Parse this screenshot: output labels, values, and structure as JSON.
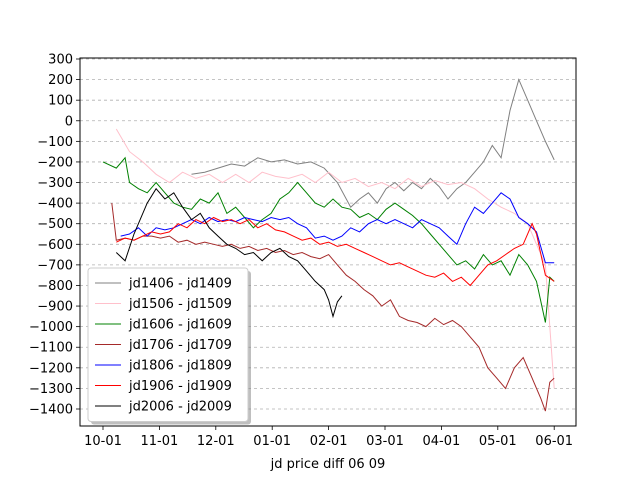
{
  "chart_data": {
    "type": "line",
    "title": "",
    "xlabel": "jd price diff 06 09",
    "ylabel": "",
    "ylim": [
      -1500,
      300
    ],
    "grid": {
      "y": true,
      "x": false,
      "style": "dashed"
    },
    "legend_position": "lower-left",
    "x_ticks": [
      "10-01",
      "11-01",
      "12-01",
      "01-01",
      "02-01",
      "03-01",
      "04-01",
      "05-01",
      "06-01"
    ],
    "y_ticks": [
      300,
      200,
      100,
      0,
      -100,
      -200,
      -300,
      -400,
      -500,
      -600,
      -700,
      -800,
      -900,
      -1000,
      -1100,
      -1200,
      -1300,
      -1400
    ],
    "series": [
      {
        "name": "jd1406 - jd1409",
        "color": "#808080",
        "points": [
          [
            2.0,
            -260
          ],
          [
            2.3,
            -250
          ],
          [
            2.6,
            -230
          ],
          [
            2.9,
            -210
          ],
          [
            3.2,
            -220
          ],
          [
            3.5,
            -180
          ],
          [
            3.8,
            -200
          ],
          [
            4.1,
            -190
          ],
          [
            4.4,
            -210
          ],
          [
            4.7,
            -200
          ],
          [
            5.0,
            -230
          ],
          [
            5.3,
            -300
          ],
          [
            5.6,
            -420
          ],
          [
            5.8,
            -380
          ],
          [
            6.0,
            -350
          ],
          [
            6.2,
            -400
          ],
          [
            6.4,
            -330
          ],
          [
            6.6,
            -300
          ],
          [
            6.8,
            -340
          ],
          [
            7.0,
            -300
          ],
          [
            7.2,
            -330
          ],
          [
            7.4,
            -280
          ],
          [
            7.6,
            -320
          ],
          [
            7.8,
            -380
          ],
          [
            8.0,
            -330
          ],
          [
            8.2,
            -300
          ],
          [
            8.4,
            -250
          ],
          [
            8.6,
            -200
          ],
          [
            8.8,
            -120
          ],
          [
            9.0,
            -180
          ],
          [
            9.2,
            50
          ],
          [
            9.4,
            200
          ],
          [
            9.6,
            100
          ],
          [
            9.8,
            0
          ],
          [
            10.0,
            -100
          ],
          [
            10.2,
            -190
          ]
        ]
      },
      {
        "name": "jd1506 - jd1509",
        "color": "#ffc0cb",
        "points": [
          [
            0.3,
            -40
          ],
          [
            0.6,
            -150
          ],
          [
            0.9,
            -200
          ],
          [
            1.2,
            -260
          ],
          [
            1.5,
            -300
          ],
          [
            1.8,
            -250
          ],
          [
            2.1,
            -280
          ],
          [
            2.4,
            -260
          ],
          [
            2.7,
            -300
          ],
          [
            3.0,
            -260
          ],
          [
            3.3,
            -300
          ],
          [
            3.6,
            -250
          ],
          [
            3.9,
            -270
          ],
          [
            4.2,
            -280
          ],
          [
            4.5,
            -260
          ],
          [
            4.8,
            -300
          ],
          [
            5.1,
            -250
          ],
          [
            5.4,
            -300
          ],
          [
            5.7,
            -280
          ],
          [
            6.0,
            -320
          ],
          [
            6.3,
            -300
          ],
          [
            6.6,
            -330
          ],
          [
            6.9,
            -280
          ],
          [
            7.2,
            -320
          ],
          [
            7.5,
            -290
          ],
          [
            7.8,
            -310
          ],
          [
            8.1,
            -300
          ],
          [
            8.4,
            -330
          ],
          [
            8.7,
            -380
          ],
          [
            9.0,
            -420
          ],
          [
            9.3,
            -450
          ],
          [
            9.6,
            -500
          ],
          [
            9.8,
            -600
          ],
          [
            10.0,
            -700
          ],
          [
            10.2,
            -1300
          ]
        ]
      },
      {
        "name": "jd1606 - jd1609",
        "color": "#008000",
        "points": [
          [
            0.0,
            -200
          ],
          [
            0.3,
            -230
          ],
          [
            0.5,
            -180
          ],
          [
            0.6,
            -300
          ],
          [
            0.8,
            -330
          ],
          [
            1.0,
            -350
          ],
          [
            1.2,
            -300
          ],
          [
            1.4,
            -350
          ],
          [
            1.6,
            -400
          ],
          [
            1.8,
            -420
          ],
          [
            2.0,
            -430
          ],
          [
            2.2,
            -380
          ],
          [
            2.4,
            -400
          ],
          [
            2.6,
            -350
          ],
          [
            2.8,
            -450
          ],
          [
            3.0,
            -420
          ],
          [
            3.2,
            -470
          ],
          [
            3.4,
            -520
          ],
          [
            3.6,
            -480
          ],
          [
            3.8,
            -450
          ],
          [
            4.0,
            -380
          ],
          [
            4.2,
            -350
          ],
          [
            4.4,
            -300
          ],
          [
            4.6,
            -350
          ],
          [
            4.8,
            -400
          ],
          [
            5.0,
            -420
          ],
          [
            5.2,
            -380
          ],
          [
            5.4,
            -420
          ],
          [
            5.6,
            -430
          ],
          [
            5.8,
            -470
          ],
          [
            6.0,
            -450
          ],
          [
            6.2,
            -480
          ],
          [
            6.4,
            -430
          ],
          [
            6.6,
            -400
          ],
          [
            6.8,
            -430
          ],
          [
            7.0,
            -460
          ],
          [
            7.2,
            -500
          ],
          [
            7.4,
            -550
          ],
          [
            7.6,
            -600
          ],
          [
            7.8,
            -650
          ],
          [
            8.0,
            -700
          ],
          [
            8.2,
            -680
          ],
          [
            8.4,
            -720
          ],
          [
            8.6,
            -650
          ],
          [
            8.8,
            -700
          ],
          [
            9.0,
            -680
          ],
          [
            9.2,
            -750
          ],
          [
            9.4,
            -650
          ],
          [
            9.6,
            -700
          ],
          [
            9.8,
            -780
          ],
          [
            10.0,
            -980
          ],
          [
            10.1,
            -760
          ],
          [
            10.2,
            -780
          ]
        ]
      },
      {
        "name": "jd1706 - jd1709",
        "color": "#a52a2a",
        "points": [
          [
            0.2,
            -400
          ],
          [
            0.3,
            -580
          ],
          [
            0.5,
            -570
          ],
          [
            0.7,
            -580
          ],
          [
            0.9,
            -560
          ],
          [
            1.1,
            -560
          ],
          [
            1.3,
            -570
          ],
          [
            1.5,
            -560
          ],
          [
            1.7,
            -590
          ],
          [
            1.9,
            -580
          ],
          [
            2.1,
            -600
          ],
          [
            2.3,
            -590
          ],
          [
            2.5,
            -600
          ],
          [
            2.7,
            -610
          ],
          [
            2.9,
            -600
          ],
          [
            3.1,
            -620
          ],
          [
            3.3,
            -610
          ],
          [
            3.5,
            -630
          ],
          [
            3.7,
            -620
          ],
          [
            3.9,
            -640
          ],
          [
            4.1,
            -630
          ],
          [
            4.3,
            -650
          ],
          [
            4.5,
            -640
          ],
          [
            4.7,
            -660
          ],
          [
            4.9,
            -670
          ],
          [
            5.1,
            -650
          ],
          [
            5.3,
            -700
          ],
          [
            5.5,
            -750
          ],
          [
            5.7,
            -780
          ],
          [
            5.9,
            -820
          ],
          [
            6.1,
            -850
          ],
          [
            6.3,
            -900
          ],
          [
            6.5,
            -870
          ],
          [
            6.7,
            -950
          ],
          [
            6.9,
            -970
          ],
          [
            7.1,
            -980
          ],
          [
            7.3,
            -1000
          ],
          [
            7.5,
            -960
          ],
          [
            7.7,
            -990
          ],
          [
            7.9,
            -970
          ],
          [
            8.1,
            -1000
          ],
          [
            8.3,
            -1050
          ],
          [
            8.5,
            -1100
          ],
          [
            8.7,
            -1200
          ],
          [
            8.9,
            -1250
          ],
          [
            9.1,
            -1300
          ],
          [
            9.3,
            -1200
          ],
          [
            9.5,
            -1150
          ],
          [
            9.7,
            -1250
          ],
          [
            9.9,
            -1350
          ],
          [
            10.0,
            -1410
          ],
          [
            10.1,
            -1270
          ],
          [
            10.2,
            -1250
          ]
        ]
      },
      {
        "name": "jd1806 - jd1809",
        "color": "#0000ff",
        "points": [
          [
            0.4,
            -560
          ],
          [
            0.6,
            -550
          ],
          [
            0.8,
            -520
          ],
          [
            1.0,
            -560
          ],
          [
            1.2,
            -520
          ],
          [
            1.4,
            -530
          ],
          [
            1.6,
            -520
          ],
          [
            1.8,
            -500
          ],
          [
            2.0,
            -480
          ],
          [
            2.2,
            -500
          ],
          [
            2.4,
            -470
          ],
          [
            2.6,
            -490
          ],
          [
            2.8,
            -480
          ],
          [
            3.0,
            -490
          ],
          [
            3.2,
            -470
          ],
          [
            3.4,
            -480
          ],
          [
            3.6,
            -490
          ],
          [
            3.8,
            -470
          ],
          [
            4.0,
            -480
          ],
          [
            4.2,
            -470
          ],
          [
            4.4,
            -500
          ],
          [
            4.6,
            -520
          ],
          [
            4.8,
            -570
          ],
          [
            5.0,
            -560
          ],
          [
            5.2,
            -580
          ],
          [
            5.4,
            -560
          ],
          [
            5.6,
            -520
          ],
          [
            5.8,
            -540
          ],
          [
            6.0,
            -500
          ],
          [
            6.2,
            -480
          ],
          [
            6.4,
            -500
          ],
          [
            6.6,
            -480
          ],
          [
            6.8,
            -500
          ],
          [
            7.0,
            -520
          ],
          [
            7.2,
            -480
          ],
          [
            7.4,
            -500
          ],
          [
            7.6,
            -520
          ],
          [
            7.8,
            -560
          ],
          [
            8.0,
            -600
          ],
          [
            8.2,
            -500
          ],
          [
            8.4,
            -420
          ],
          [
            8.6,
            -450
          ],
          [
            8.8,
            -400
          ],
          [
            9.0,
            -350
          ],
          [
            9.2,
            -380
          ],
          [
            9.4,
            -470
          ],
          [
            9.6,
            -500
          ],
          [
            9.8,
            -540
          ],
          [
            10.0,
            -690
          ],
          [
            10.2,
            -690
          ]
        ]
      },
      {
        "name": "jd1906 - jd1909",
        "color": "#ff0000",
        "points": [
          [
            0.3,
            -590
          ],
          [
            0.5,
            -570
          ],
          [
            0.7,
            -580
          ],
          [
            0.9,
            -560
          ],
          [
            1.1,
            -540
          ],
          [
            1.3,
            -550
          ],
          [
            1.5,
            -540
          ],
          [
            1.7,
            -500
          ],
          [
            1.9,
            -520
          ],
          [
            2.1,
            -480
          ],
          [
            2.3,
            -500
          ],
          [
            2.5,
            -470
          ],
          [
            2.7,
            -490
          ],
          [
            2.9,
            -480
          ],
          [
            3.1,
            -500
          ],
          [
            3.3,
            -480
          ],
          [
            3.5,
            -520
          ],
          [
            3.7,
            -500
          ],
          [
            3.9,
            -530
          ],
          [
            4.1,
            -540
          ],
          [
            4.3,
            -560
          ],
          [
            4.5,
            -580
          ],
          [
            4.7,
            -570
          ],
          [
            4.9,
            -600
          ],
          [
            5.1,
            -590
          ],
          [
            5.3,
            -610
          ],
          [
            5.5,
            -600
          ],
          [
            5.7,
            -620
          ],
          [
            5.9,
            -640
          ],
          [
            6.1,
            -660
          ],
          [
            6.3,
            -680
          ],
          [
            6.5,
            -700
          ],
          [
            6.7,
            -690
          ],
          [
            6.9,
            -710
          ],
          [
            7.1,
            -730
          ],
          [
            7.3,
            -750
          ],
          [
            7.5,
            -760
          ],
          [
            7.7,
            -740
          ],
          [
            7.9,
            -780
          ],
          [
            8.1,
            -760
          ],
          [
            8.3,
            -800
          ],
          [
            8.5,
            -750
          ],
          [
            8.7,
            -700
          ],
          [
            8.9,
            -680
          ],
          [
            9.1,
            -650
          ],
          [
            9.3,
            -620
          ],
          [
            9.5,
            -600
          ],
          [
            9.7,
            -500
          ],
          [
            9.8,
            -550
          ],
          [
            10.0,
            -750
          ],
          [
            10.2,
            -780
          ]
        ]
      },
      {
        "name": "jd2006 - jd2009",
        "color": "#000000",
        "points": [
          [
            0.3,
            -640
          ],
          [
            0.5,
            -680
          ],
          [
            0.7,
            -550
          ],
          [
            0.8,
            -500
          ],
          [
            1.0,
            -400
          ],
          [
            1.2,
            -330
          ],
          [
            1.4,
            -380
          ],
          [
            1.6,
            -350
          ],
          [
            1.8,
            -420
          ],
          [
            2.0,
            -480
          ],
          [
            2.2,
            -450
          ],
          [
            2.4,
            -520
          ],
          [
            2.6,
            -560
          ],
          [
            2.8,
            -600
          ],
          [
            3.0,
            -620
          ],
          [
            3.2,
            -650
          ],
          [
            3.4,
            -640
          ],
          [
            3.6,
            -680
          ],
          [
            3.8,
            -640
          ],
          [
            4.0,
            -620
          ],
          [
            4.2,
            -660
          ],
          [
            4.4,
            -680
          ],
          [
            4.6,
            -730
          ],
          [
            4.8,
            -780
          ],
          [
            5.0,
            -820
          ],
          [
            5.1,
            -870
          ],
          [
            5.2,
            -950
          ],
          [
            5.3,
            -880
          ],
          [
            5.4,
            -850
          ]
        ]
      }
    ]
  }
}
